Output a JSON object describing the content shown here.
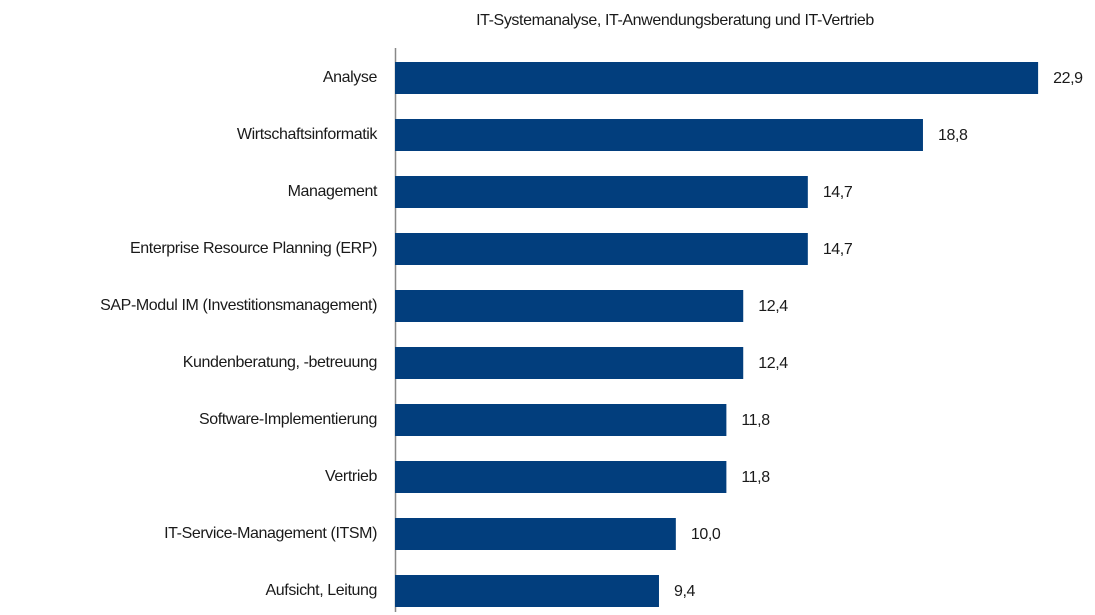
{
  "chart_data": {
    "type": "barh",
    "title": "IT-Systemanalyse, IT-Anwendungsberatung und IT-Vertrieb",
    "categories": [
      "Analyse",
      "Wirtschaftsinformatik",
      "Management",
      "Enterprise Resource Planning (ERP)",
      "SAP-Modul IM (Investitionsmanagement)",
      "Kundenberatung, -betreuung",
      "Software-Implementierung",
      "Vertrieb",
      "IT-Service-Management (ITSM)",
      "Aufsicht, Leitung"
    ],
    "values": [
      22.9,
      18.8,
      14.7,
      14.7,
      12.4,
      12.4,
      11.8,
      11.8,
      10.0,
      9.4
    ],
    "value_labels": [
      "22,9",
      "18,8",
      "14,7",
      "14,7",
      "12,4",
      "12,4",
      "11,8",
      "11,8",
      "10,0",
      "9,4"
    ],
    "color": "#023e7d",
    "xlim": [
      0,
      24
    ]
  }
}
